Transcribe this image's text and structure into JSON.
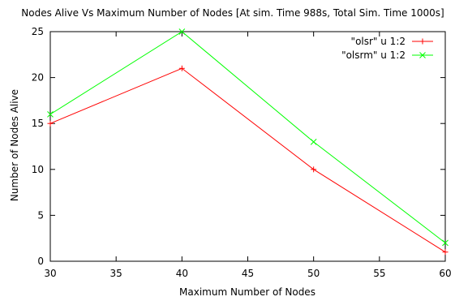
{
  "chart_data": {
    "type": "line",
    "title": "Nodes Alive Vs Maximum Number of Nodes [At sim. Time 988s, Total Sim. Time 1000s]",
    "xlabel": "Maximum Number of Nodes",
    "ylabel": "Number of Nodes Alive",
    "xlim": [
      30,
      60
    ],
    "ylim": [
      0,
      25
    ],
    "xticks": [
      "30",
      "35",
      "40",
      "45",
      "50",
      "55",
      "60"
    ],
    "yticks": [
      "0",
      "5",
      "10",
      "15",
      "20",
      "25"
    ],
    "x": [
      30,
      40,
      50,
      60
    ],
    "series": [
      {
        "name": "\"olsr\" u 1:2",
        "values": [
          15,
          21,
          10,
          1
        ],
        "color": "#ff0000",
        "marker": "plus"
      },
      {
        "name": "\"olsrm\" u 1:2",
        "values": [
          16,
          25,
          13,
          2
        ],
        "color": "#00ff00",
        "marker": "cross"
      }
    ],
    "grid": false,
    "legend_position": "top-right"
  }
}
